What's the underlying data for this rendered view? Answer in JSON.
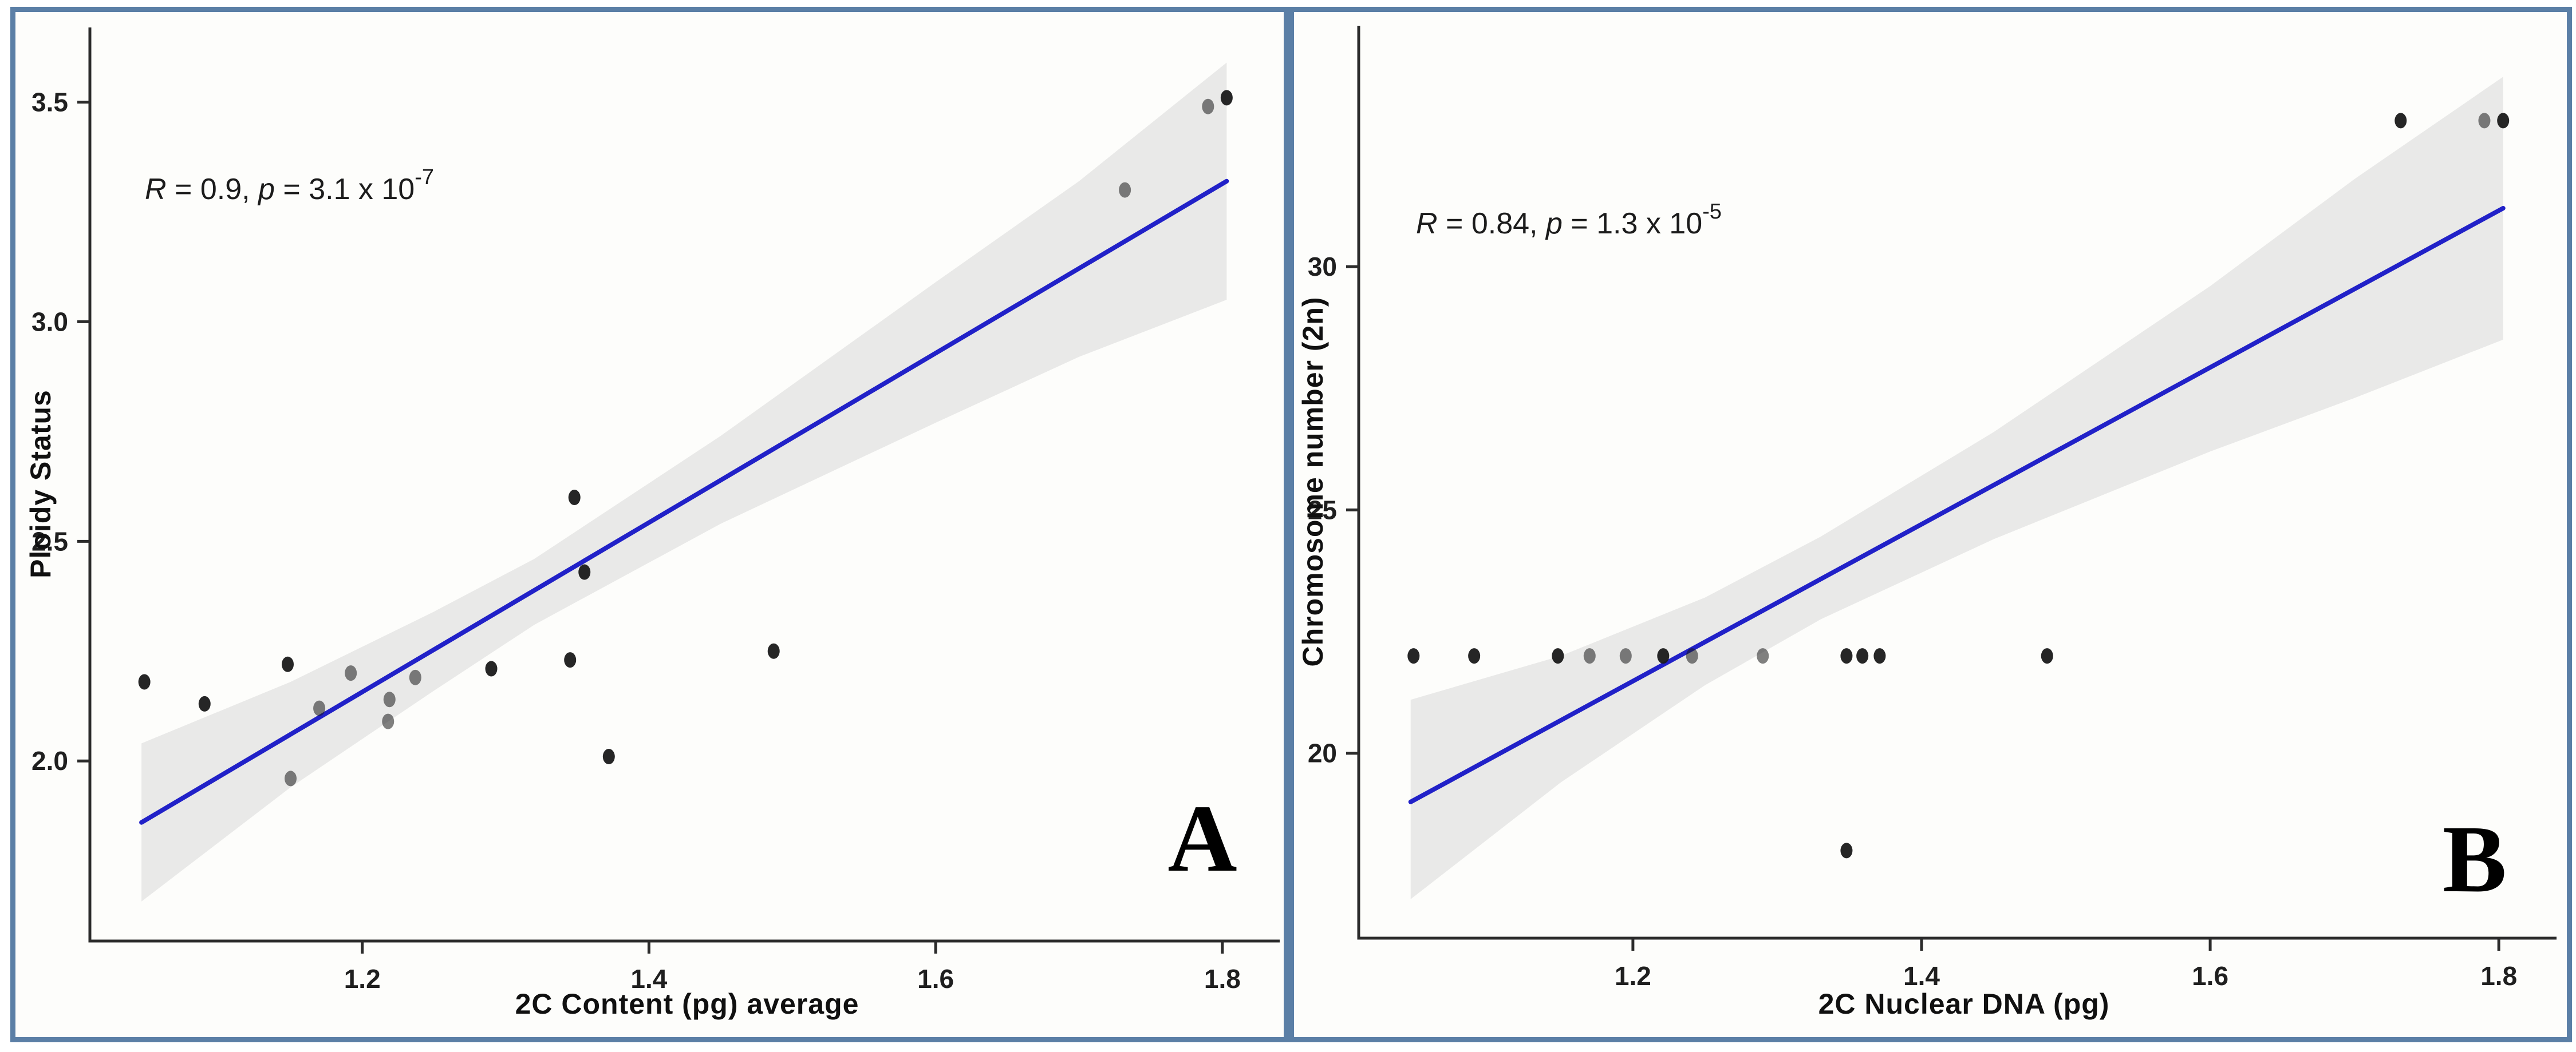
{
  "figure": {
    "border_color": "#5b7fa6",
    "background_color": "#ffffff",
    "panel_background": "#fdfdfb"
  },
  "chart_data": [
    {
      "id": "A",
      "type": "scatter",
      "panel_letter": "A",
      "xlabel": "2C Content (pg) average",
      "ylabel": "Ploidy Status",
      "xlim": [
        1.01,
        1.84
      ],
      "ylim": [
        1.59,
        3.67
      ],
      "x_ticks": [
        1.2,
        1.4,
        1.6,
        1.8
      ],
      "x_tick_labels": [
        "1.2",
        "1.4",
        "1.6",
        "1.8"
      ],
      "y_ticks": [
        2.0,
        2.5,
        3.0,
        3.5
      ],
      "y_tick_labels": [
        "2.0",
        "2.5",
        "3.0",
        "3.5"
      ],
      "grid": false,
      "legend": "none",
      "annotation_parts": [
        {
          "t": "R",
          "i": 1
        },
        {
          "t": " = 0.9, "
        },
        {
          "t": "p",
          "i": 1
        },
        {
          "t": " = 3.1 x 10"
        },
        {
          "t": "-7",
          "s": 1
        }
      ],
      "points": [
        {
          "x": 1.048,
          "y": 2.18,
          "shade": "dark"
        },
        {
          "x": 1.09,
          "y": 2.13,
          "shade": "dark"
        },
        {
          "x": 1.148,
          "y": 2.22,
          "shade": "dark"
        },
        {
          "x": 1.15,
          "y": 1.96,
          "shade": "mid"
        },
        {
          "x": 1.17,
          "y": 2.12,
          "shade": "mid"
        },
        {
          "x": 1.192,
          "y": 2.2,
          "shade": "mid"
        },
        {
          "x": 1.218,
          "y": 2.09,
          "shade": "mid"
        },
        {
          "x": 1.219,
          "y": 2.14,
          "shade": "mid"
        },
        {
          "x": 1.237,
          "y": 2.19,
          "shade": "mid"
        },
        {
          "x": 1.29,
          "y": 2.21,
          "shade": "dark"
        },
        {
          "x": 1.348,
          "y": 2.6,
          "shade": "dark"
        },
        {
          "x": 1.355,
          "y": 2.43,
          "shade": "dark"
        },
        {
          "x": 1.345,
          "y": 2.23,
          "shade": "dark"
        },
        {
          "x": 1.372,
          "y": 2.01,
          "shade": "dark"
        },
        {
          "x": 1.487,
          "y": 2.25,
          "shade": "dark"
        },
        {
          "x": 1.732,
          "y": 3.3,
          "shade": "mid"
        },
        {
          "x": 1.79,
          "y": 3.49,
          "shade": "mid"
        },
        {
          "x": 1.803,
          "y": 3.51,
          "shade": "dark"
        }
      ],
      "regression": {
        "x1": 1.046,
        "y1": 1.86,
        "x2": 1.803,
        "y2": 3.32
      },
      "band": [
        [
          1.046,
          1.68,
          2.04
        ],
        [
          1.15,
          1.94,
          2.18
        ],
        [
          1.25,
          2.16,
          2.34
        ],
        [
          1.32,
          2.31,
          2.46
        ],
        [
          1.45,
          2.54,
          2.74
        ],
        [
          1.6,
          2.77,
          3.09
        ],
        [
          1.7,
          2.92,
          3.32
        ],
        [
          1.803,
          3.05,
          3.59
        ]
      ],
      "line_color": "#2121c8",
      "band_color": "#e9e9e8",
      "point_color": "#1a1a1a"
    },
    {
      "id": "B",
      "type": "scatter",
      "panel_letter": "B",
      "xlabel": "2C Nuclear DNA  (pg)",
      "ylabel": "Chromosome number (2n)",
      "xlim": [
        1.01,
        1.84
      ],
      "ylim": [
        16.2,
        34.95
      ],
      "x_ticks": [
        1.2,
        1.4,
        1.6,
        1.8
      ],
      "x_tick_labels": [
        "1.2",
        "1.4",
        "1.6",
        "1.8"
      ],
      "y_ticks": [
        20,
        25,
        30
      ],
      "y_tick_labels": [
        "20",
        "25",
        "30"
      ],
      "grid": false,
      "legend": "none",
      "annotation_parts": [
        {
          "t": "R",
          "i": 1
        },
        {
          "t": " = 0.84, "
        },
        {
          "t": "p",
          "i": 1
        },
        {
          "t": " = 1.3 x 10"
        },
        {
          "t": "-5",
          "s": 1
        }
      ],
      "points": [
        {
          "x": 1.048,
          "y": 22,
          "shade": "dark"
        },
        {
          "x": 1.09,
          "y": 22,
          "shade": "dark"
        },
        {
          "x": 1.148,
          "y": 22,
          "shade": "dark"
        },
        {
          "x": 1.17,
          "y": 22,
          "shade": "mid"
        },
        {
          "x": 1.195,
          "y": 22,
          "shade": "mid"
        },
        {
          "x": 1.221,
          "y": 22,
          "shade": "dark"
        },
        {
          "x": 1.241,
          "y": 22,
          "shade": "mid"
        },
        {
          "x": 1.29,
          "y": 22,
          "shade": "mid"
        },
        {
          "x": 1.348,
          "y": 22,
          "shade": "dark"
        },
        {
          "x": 1.359,
          "y": 22,
          "shade": "dark"
        },
        {
          "x": 1.371,
          "y": 22,
          "shade": "dark"
        },
        {
          "x": 1.487,
          "y": 22,
          "shade": "dark"
        },
        {
          "x": 1.348,
          "y": 18,
          "shade": "dark"
        },
        {
          "x": 1.732,
          "y": 33,
          "shade": "dark"
        },
        {
          "x": 1.79,
          "y": 33,
          "shade": "mid"
        },
        {
          "x": 1.803,
          "y": 33,
          "shade": "dark"
        }
      ],
      "regression": {
        "x1": 1.046,
        "y1": 19.0,
        "x2": 1.803,
        "y2": 31.2
      },
      "band": [
        [
          1.046,
          17.0,
          21.1
        ],
        [
          1.15,
          19.4,
          22.0
        ],
        [
          1.25,
          21.4,
          23.2
        ],
        [
          1.33,
          22.75,
          24.45
        ],
        [
          1.45,
          24.4,
          26.6
        ],
        [
          1.6,
          26.2,
          29.6
        ],
        [
          1.7,
          27.3,
          31.8
        ],
        [
          1.803,
          28.5,
          33.9
        ]
      ],
      "line_color": "#2121c8",
      "band_color": "#e9e9e8",
      "point_color": "#1a1a1a"
    }
  ]
}
